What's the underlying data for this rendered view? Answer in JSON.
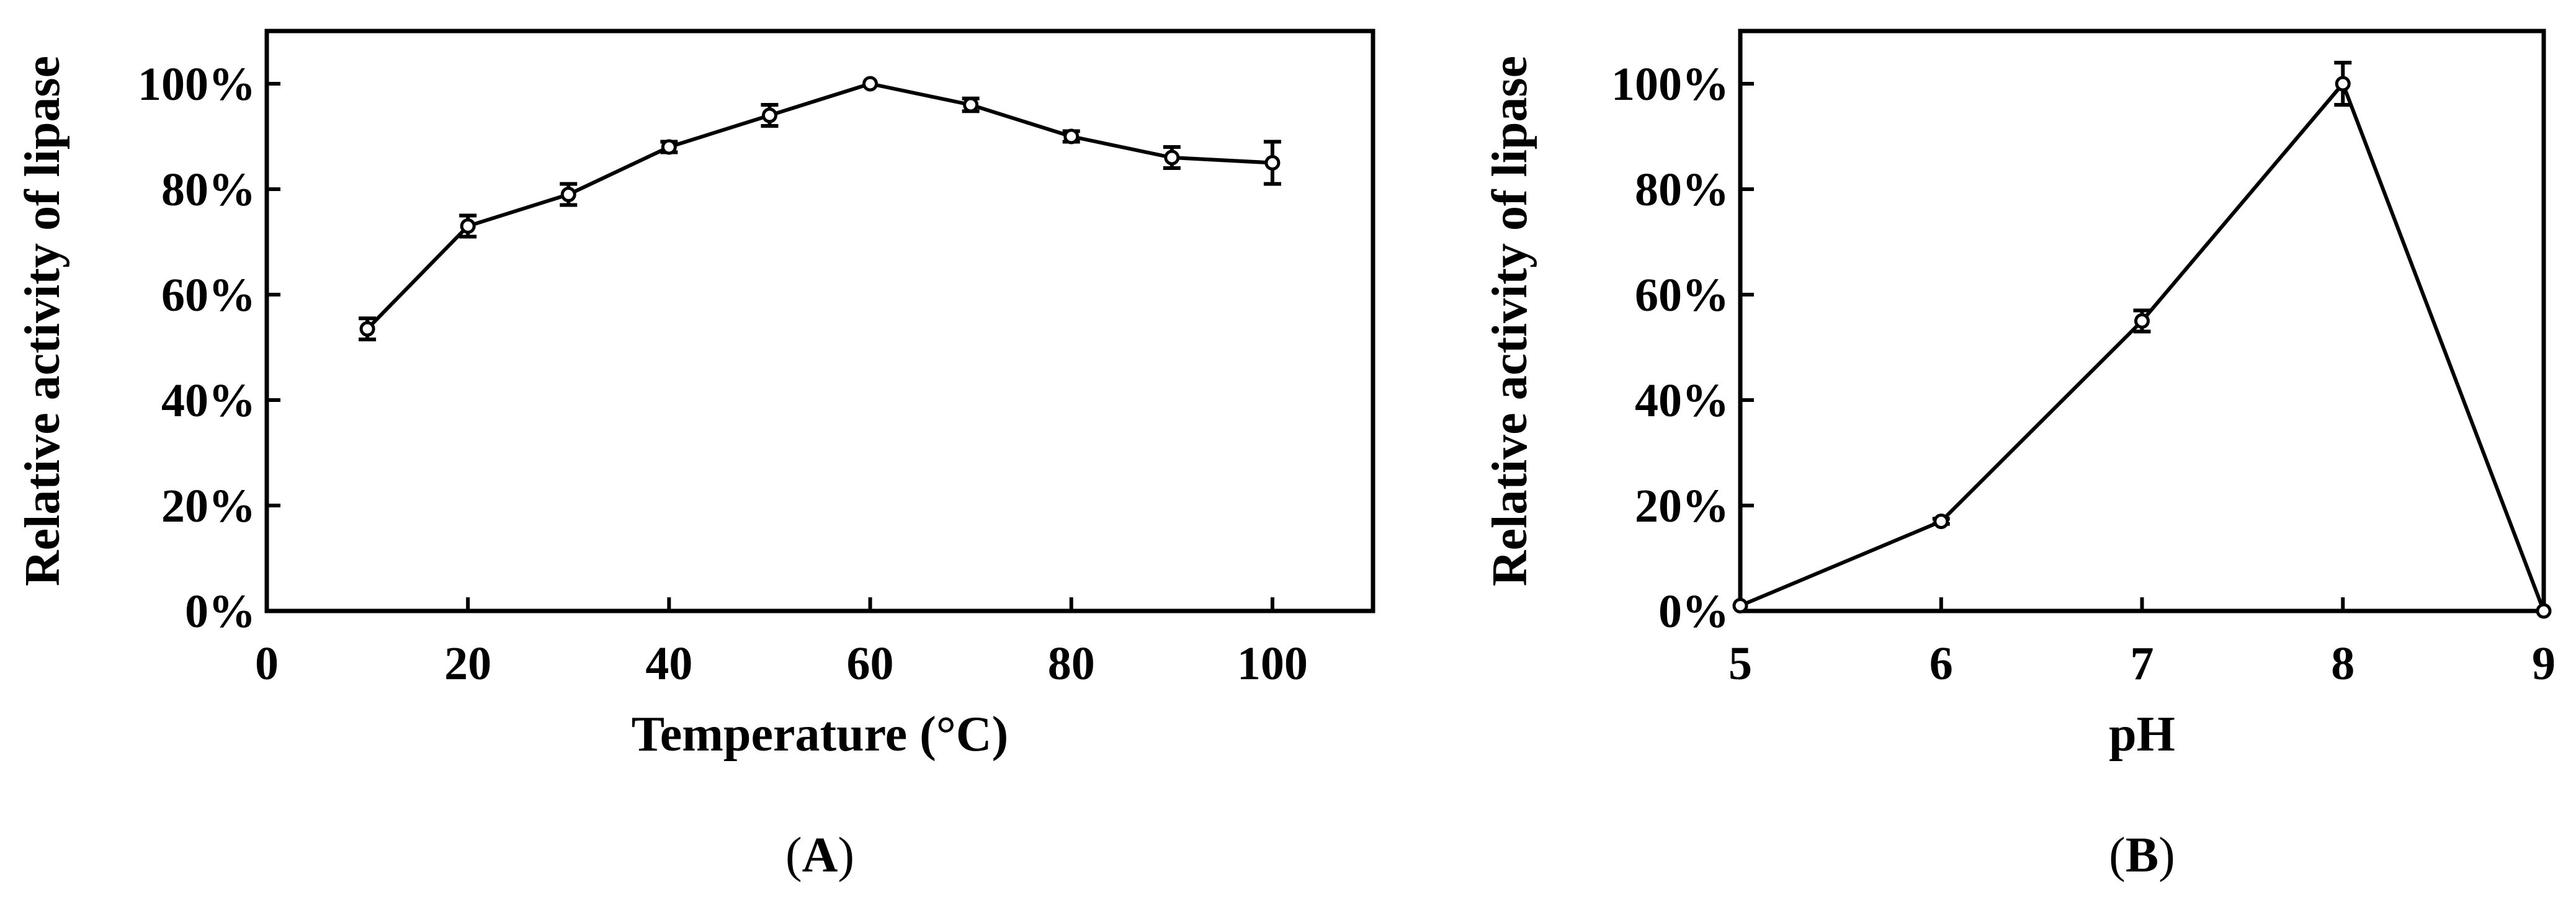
{
  "chart_data": [
    {
      "type": "line",
      "panel_label": "A",
      "xlabel": "Temperature (°C)",
      "ylabel": "Relative activity of lipase",
      "xlim": [
        0,
        110
      ],
      "ylim": [
        0,
        110
      ],
      "xticks": [
        0,
        20,
        40,
        60,
        80,
        100
      ],
      "yticks": [
        0,
        20,
        40,
        60,
        80,
        100
      ],
      "ytick_suffix": "%",
      "grid": false,
      "series": [
        {
          "x": [
            10,
            20,
            30,
            40,
            50,
            60,
            70,
            80,
            90,
            100
          ],
          "y": [
            53.5,
            73,
            79,
            88,
            94,
            100,
            96,
            90,
            86,
            85
          ],
          "err": [
            2,
            2,
            2,
            1,
            2,
            0,
            1.2,
            1,
            2,
            4
          ],
          "color": "#000000",
          "marker": "circle"
        }
      ]
    },
    {
      "type": "line",
      "panel_label": "B",
      "xlabel": "pH",
      "ylabel": "Relative activity of lipase",
      "xlim": [
        5,
        9
      ],
      "ylim": [
        0,
        110
      ],
      "xticks": [
        5,
        6,
        7,
        8,
        9
      ],
      "yticks": [
        0,
        20,
        40,
        60,
        80,
        100
      ],
      "ytick_suffix": "%",
      "grid": false,
      "series": [
        {
          "x": [
            5,
            6,
            7,
            8,
            9
          ],
          "y": [
            1,
            17,
            55,
            100,
            0
          ],
          "err": [
            0,
            0.5,
            2,
            4,
            0
          ],
          "color": "#000000",
          "marker": "circle"
        }
      ]
    }
  ]
}
